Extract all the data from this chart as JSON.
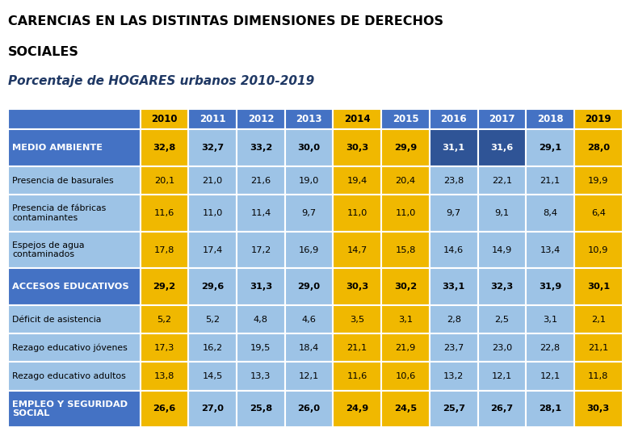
{
  "title_line1": "CARENCIAS EN LAS DISTINTAS DIMENSIONES DE DERECHOS",
  "title_line2": "SOCIALES",
  "subtitle": "Porcentaje de HOGARES urbanos 2010-2019",
  "years": [
    "2010",
    "2011",
    "2012",
    "2013",
    "2014",
    "2015",
    "2016",
    "2017",
    "2018",
    "2019"
  ],
  "rows": [
    {
      "label": "MEDIO AMBIENTE",
      "values": [
        "32,8",
        "32,7",
        "33,2",
        "30,0",
        "30,3",
        "29,9",
        "31,1",
        "31,6",
        "29,1",
        "28,0"
      ],
      "is_header": true,
      "label_bg": "#4472C4",
      "label_fg": "#FFFFFF",
      "cell_bgs": [
        "#F0B800",
        "#9DC3E6",
        "#9DC3E6",
        "#9DC3E6",
        "#F0B800",
        "#F0B800",
        "#2F5496",
        "#2F5496",
        "#9DC3E6",
        "#F0B800"
      ],
      "cell_fgs": [
        "#000000",
        "#000000",
        "#000000",
        "#000000",
        "#000000",
        "#000000",
        "#FFFFFF",
        "#FFFFFF",
        "#000000",
        "#000000"
      ],
      "bold_values": true
    },
    {
      "label": "Presencia de basurales",
      "values": [
        "20,1",
        "21,0",
        "21,6",
        "19,0",
        "19,4",
        "20,4",
        "23,8",
        "22,1",
        "21,1",
        "19,9"
      ],
      "is_header": false,
      "label_bg": "#9DC3E6",
      "label_fg": "#000000",
      "cell_bgs": [
        "#F0B800",
        "#9DC3E6",
        "#9DC3E6",
        "#9DC3E6",
        "#F0B800",
        "#F0B800",
        "#9DC3E6",
        "#9DC3E6",
        "#9DC3E6",
        "#F0B800"
      ],
      "cell_fgs": [
        "#000000",
        "#000000",
        "#000000",
        "#000000",
        "#000000",
        "#000000",
        "#000000",
        "#000000",
        "#000000",
        "#000000"
      ],
      "bold_values": false
    },
    {
      "label": "Presencia de fábricas\ncontaminantes",
      "values": [
        "11,6",
        "11,0",
        "11,4",
        "9,7",
        "11,0",
        "11,0",
        "9,7",
        "9,1",
        "8,4",
        "6,4"
      ],
      "is_header": false,
      "label_bg": "#9DC3E6",
      "label_fg": "#000000",
      "cell_bgs": [
        "#F0B800",
        "#9DC3E6",
        "#9DC3E6",
        "#9DC3E6",
        "#F0B800",
        "#F0B800",
        "#9DC3E6",
        "#9DC3E6",
        "#9DC3E6",
        "#F0B800"
      ],
      "cell_fgs": [
        "#000000",
        "#000000",
        "#000000",
        "#000000",
        "#000000",
        "#000000",
        "#000000",
        "#000000",
        "#000000",
        "#000000"
      ],
      "bold_values": false
    },
    {
      "label": "Espejos de agua\ncontaminados",
      "values": [
        "17,8",
        "17,4",
        "17,2",
        "16,9",
        "14,7",
        "15,8",
        "14,6",
        "14,9",
        "13,4",
        "10,9"
      ],
      "is_header": false,
      "label_bg": "#9DC3E6",
      "label_fg": "#000000",
      "cell_bgs": [
        "#F0B800",
        "#9DC3E6",
        "#9DC3E6",
        "#9DC3E6",
        "#F0B800",
        "#F0B800",
        "#9DC3E6",
        "#9DC3E6",
        "#9DC3E6",
        "#F0B800"
      ],
      "cell_fgs": [
        "#000000",
        "#000000",
        "#000000",
        "#000000",
        "#000000",
        "#000000",
        "#000000",
        "#000000",
        "#000000",
        "#000000"
      ],
      "bold_values": false
    },
    {
      "label": "ACCESOS EDUCATIVOS",
      "values": [
        "29,2",
        "29,6",
        "31,3",
        "29,0",
        "30,3",
        "30,2",
        "33,1",
        "32,3",
        "31,9",
        "30,1"
      ],
      "is_header": true,
      "label_bg": "#4472C4",
      "label_fg": "#FFFFFF",
      "cell_bgs": [
        "#F0B800",
        "#9DC3E6",
        "#9DC3E6",
        "#9DC3E6",
        "#F0B800",
        "#F0B800",
        "#9DC3E6",
        "#9DC3E6",
        "#9DC3E6",
        "#F0B800"
      ],
      "cell_fgs": [
        "#000000",
        "#000000",
        "#000000",
        "#000000",
        "#000000",
        "#000000",
        "#000000",
        "#000000",
        "#000000",
        "#000000"
      ],
      "bold_values": true
    },
    {
      "label": "Déficit de asistencia",
      "values": [
        "5,2",
        "5,2",
        "4,8",
        "4,6",
        "3,5",
        "3,1",
        "2,8",
        "2,5",
        "3,1",
        "2,1"
      ],
      "is_header": false,
      "label_bg": "#9DC3E6",
      "label_fg": "#000000",
      "cell_bgs": [
        "#F0B800",
        "#9DC3E6",
        "#9DC3E6",
        "#9DC3E6",
        "#F0B800",
        "#F0B800",
        "#9DC3E6",
        "#9DC3E6",
        "#9DC3E6",
        "#F0B800"
      ],
      "cell_fgs": [
        "#000000",
        "#000000",
        "#000000",
        "#000000",
        "#000000",
        "#000000",
        "#000000",
        "#000000",
        "#000000",
        "#000000"
      ],
      "bold_values": false
    },
    {
      "label": "Rezago educativo jóvenes",
      "values": [
        "17,3",
        "16,2",
        "19,5",
        "18,4",
        "21,1",
        "21,9",
        "23,7",
        "23,0",
        "22,8",
        "21,1"
      ],
      "is_header": false,
      "label_bg": "#9DC3E6",
      "label_fg": "#000000",
      "cell_bgs": [
        "#F0B800",
        "#9DC3E6",
        "#9DC3E6",
        "#9DC3E6",
        "#F0B800",
        "#F0B800",
        "#9DC3E6",
        "#9DC3E6",
        "#9DC3E6",
        "#F0B800"
      ],
      "cell_fgs": [
        "#000000",
        "#000000",
        "#000000",
        "#000000",
        "#000000",
        "#000000",
        "#000000",
        "#000000",
        "#000000",
        "#000000"
      ],
      "bold_values": false
    },
    {
      "label": "Rezago educativo adultos",
      "values": [
        "13,8",
        "14,5",
        "13,3",
        "12,1",
        "11,6",
        "10,6",
        "13,2",
        "12,1",
        "12,1",
        "11,8"
      ],
      "is_header": false,
      "label_bg": "#9DC3E6",
      "label_fg": "#000000",
      "cell_bgs": [
        "#F0B800",
        "#9DC3E6",
        "#9DC3E6",
        "#9DC3E6",
        "#F0B800",
        "#F0B800",
        "#9DC3E6",
        "#9DC3E6",
        "#9DC3E6",
        "#F0B800"
      ],
      "cell_fgs": [
        "#000000",
        "#000000",
        "#000000",
        "#000000",
        "#000000",
        "#000000",
        "#000000",
        "#000000",
        "#000000",
        "#000000"
      ],
      "bold_values": false
    },
    {
      "label": "EMPLEO Y SEGURIDAD\nSOCIAL",
      "values": [
        "26,6",
        "27,0",
        "25,8",
        "26,0",
        "24,9",
        "24,5",
        "25,7",
        "26,7",
        "28,1",
        "30,3"
      ],
      "is_header": true,
      "label_bg": "#4472C4",
      "label_fg": "#FFFFFF",
      "cell_bgs": [
        "#F0B800",
        "#9DC3E6",
        "#9DC3E6",
        "#9DC3E6",
        "#F0B800",
        "#F0B800",
        "#9DC3E6",
        "#9DC3E6",
        "#9DC3E6",
        "#F0B800"
      ],
      "cell_fgs": [
        "#000000",
        "#000000",
        "#000000",
        "#000000",
        "#000000",
        "#000000",
        "#000000",
        "#000000",
        "#000000",
        "#000000"
      ],
      "bold_values": true
    }
  ],
  "header_row": {
    "label_bg": "#4472C4",
    "year_bgs": [
      "#F0B800",
      "#4472C4",
      "#4472C4",
      "#4472C4",
      "#F0B800",
      "#4472C4",
      "#4472C4",
      "#4472C4",
      "#4472C4",
      "#F0B800"
    ],
    "year_fgs": [
      "#000000",
      "#FFFFFF",
      "#FFFFFF",
      "#FFFFFF",
      "#000000",
      "#FFFFFF",
      "#FFFFFF",
      "#FFFFFF",
      "#FFFFFF",
      "#000000"
    ]
  },
  "title_color": "#000000",
  "subtitle_color": "#1F3864",
  "bg_color": "#FFFFFF"
}
